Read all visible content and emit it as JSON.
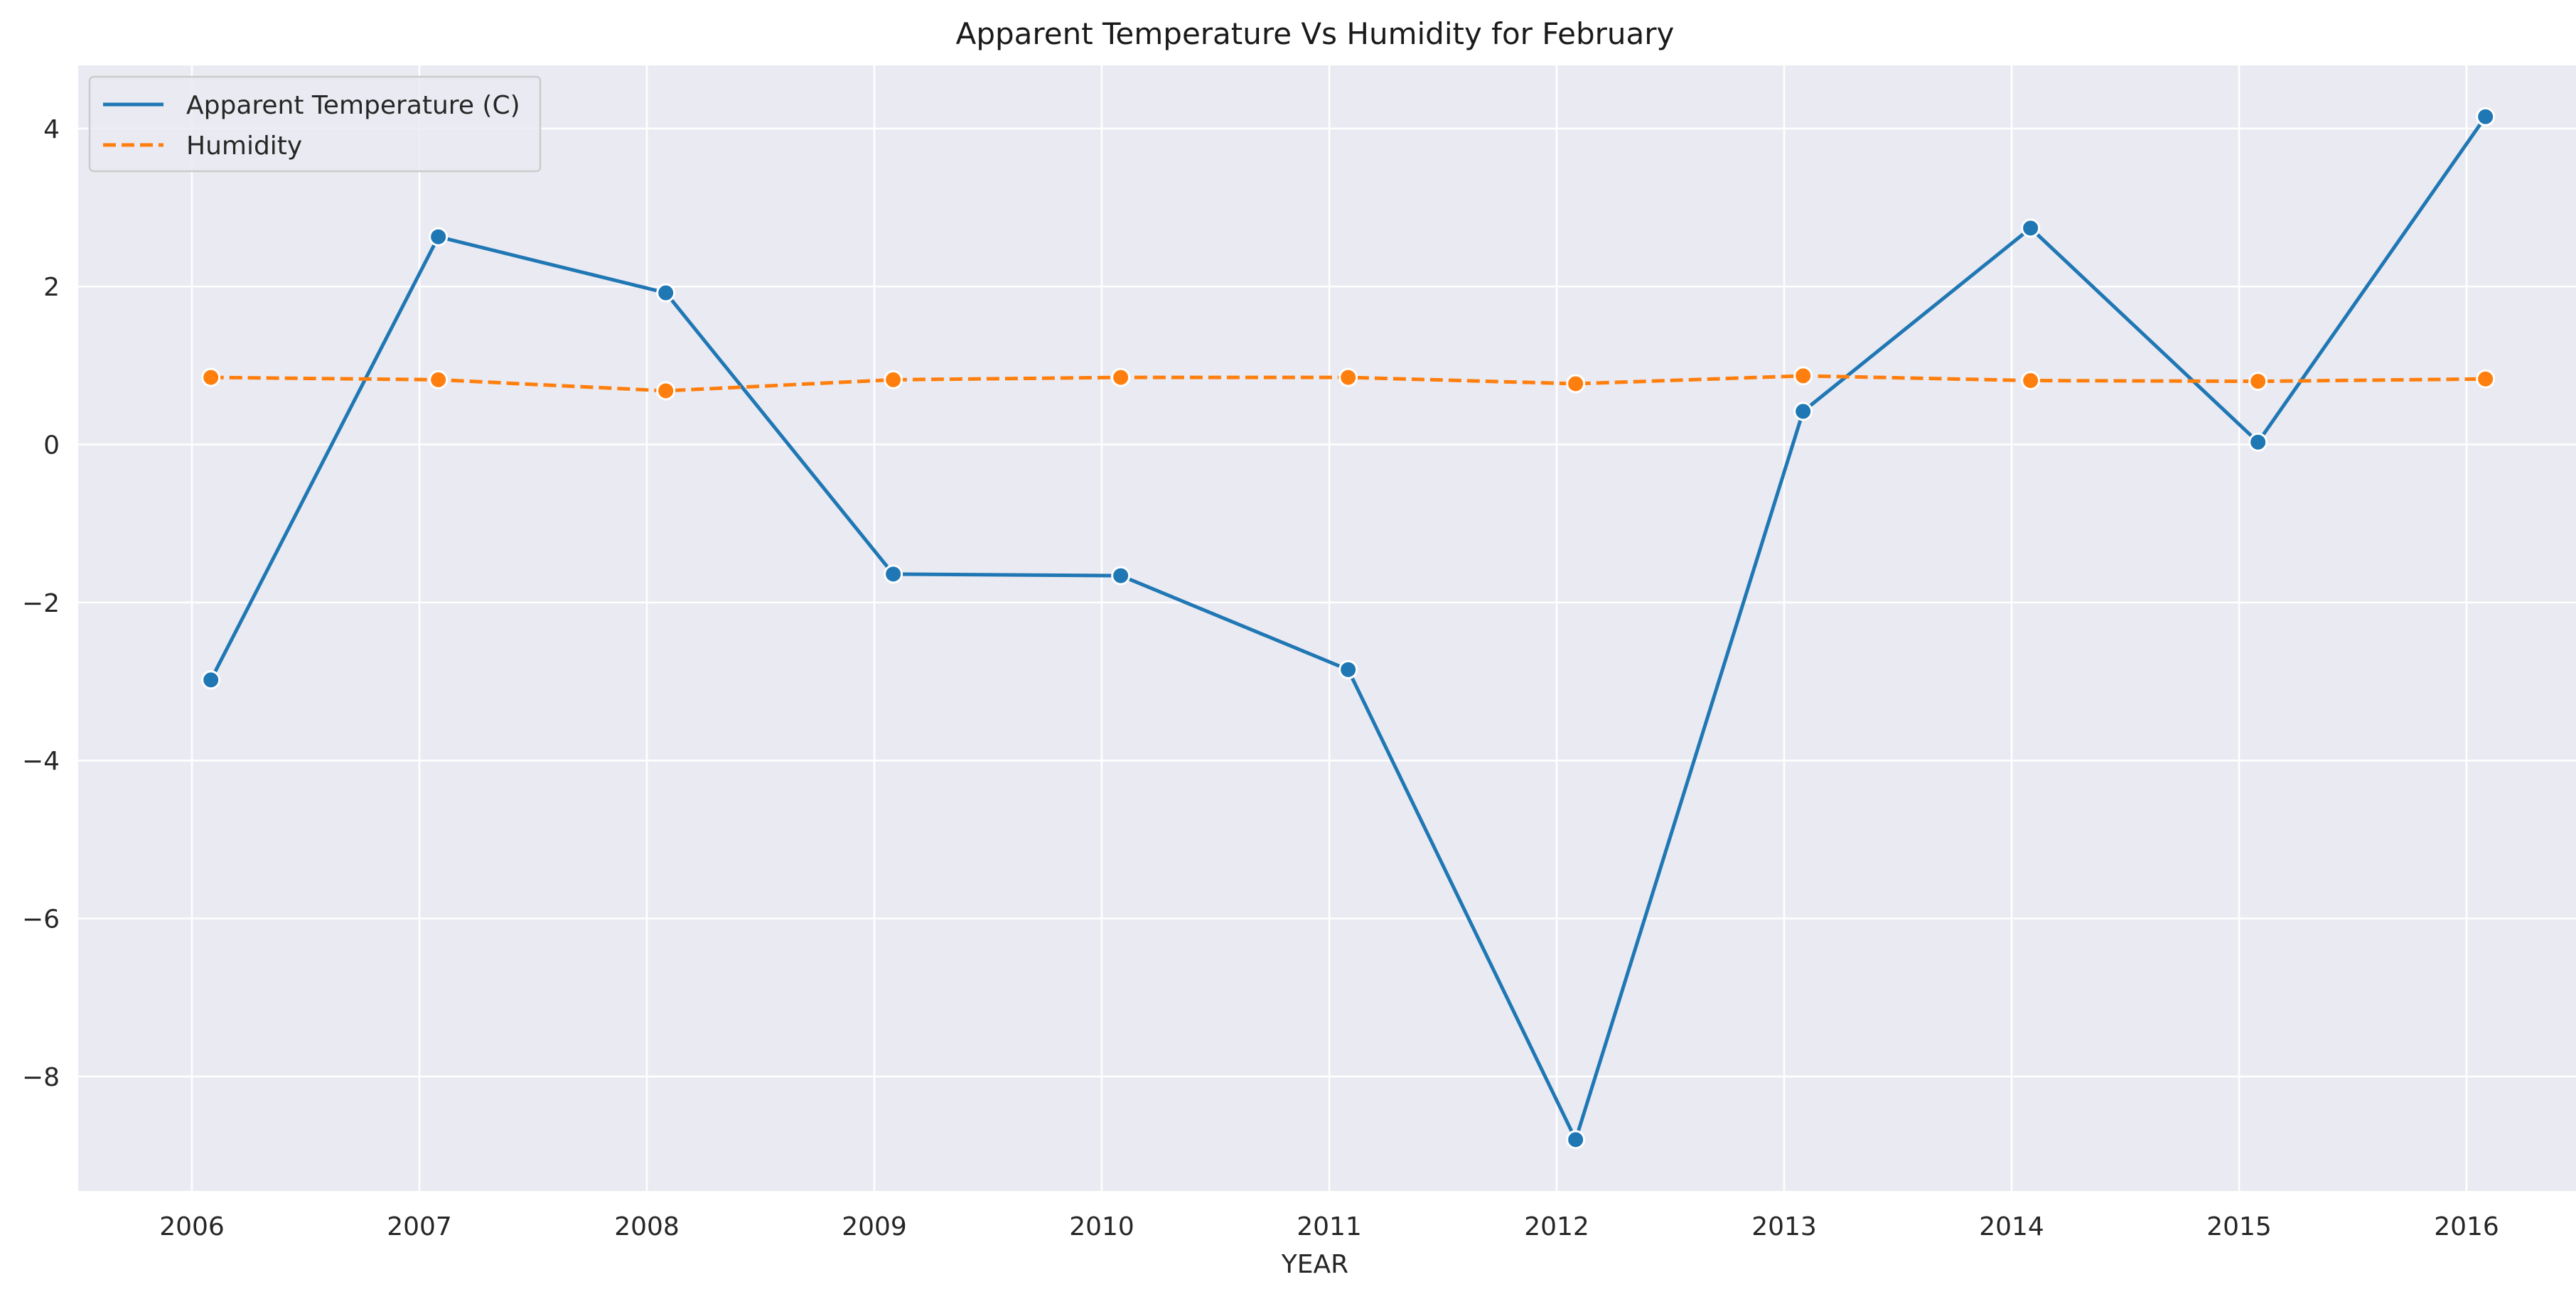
{
  "chart_data": {
    "type": "line",
    "title": "Apparent Temperature Vs Humidity for February",
    "xlabel": "YEAR",
    "ylabel": "",
    "x": [
      "2006-02",
      "2007-02",
      "2008-02",
      "2009-02",
      "2010-02",
      "2011-02",
      "2012-02",
      "2013-02",
      "2014-02",
      "2015-02",
      "2016-02"
    ],
    "x_ticks": [
      "2006",
      "2007",
      "2008",
      "2009",
      "2010",
      "2011",
      "2012",
      "2013",
      "2014",
      "2015",
      "2016"
    ],
    "x_range": [
      "2005-07",
      "2016-07"
    ],
    "y_ticks": [
      "−8",
      "−6",
      "−4",
      "−2",
      "0",
      "2",
      "4"
    ],
    "ylim": [
      -9.45,
      4.8
    ],
    "grid": true,
    "legend_position": "top-left",
    "series": [
      {
        "name": "Apparent Temperature (C)",
        "color": "#1f77b4",
        "line_style": "solid",
        "marker": "circle",
        "values": [
          -2.98,
          2.63,
          1.92,
          -1.64,
          -1.66,
          -2.85,
          -8.8,
          0.42,
          2.74,
          0.03,
          4.15
        ]
      },
      {
        "name": "Humidity",
        "color": "#ff7f0e",
        "line_style": "dashed",
        "marker": "circle",
        "values": [
          0.85,
          0.82,
          0.68,
          0.82,
          0.85,
          0.85,
          0.77,
          0.87,
          0.81,
          0.8,
          0.83
        ]
      }
    ]
  }
}
